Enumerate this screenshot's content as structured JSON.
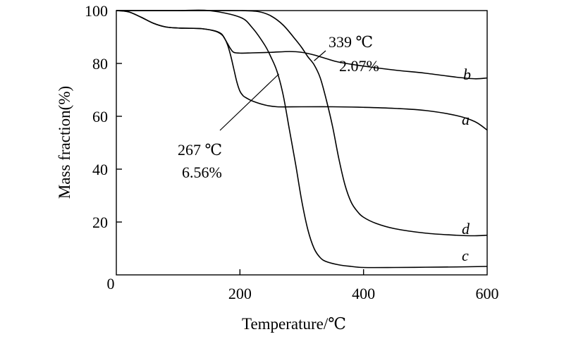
{
  "chart_data": {
    "type": "line",
    "title": "",
    "xlabel": "Temperature/℃",
    "ylabel": "Mass fraction(%)",
    "xlim": [
      0,
      600
    ],
    "ylim": [
      0,
      100
    ],
    "xticks": [
      0,
      200,
      400,
      600
    ],
    "yticks": [
      20,
      40,
      60,
      80,
      100
    ],
    "x_tick_labels": [
      "0",
      "200",
      "400",
      "600"
    ],
    "y_tick_labels": [
      "20",
      "40",
      "60",
      "80",
      "100"
    ],
    "grid": false,
    "legend": "inline labels at right end of curves",
    "series": [
      {
        "name": "a",
        "x": [
          0,
          20,
          40,
          60,
          80,
          100,
          120,
          140,
          160,
          170,
          175,
          180,
          185,
          190,
          195,
          200,
          205,
          210,
          220,
          240,
          260,
          300,
          350,
          400,
          450,
          500,
          550,
          580,
          600
        ],
        "y": [
          100,
          99.5,
          97.5,
          95.2,
          93.8,
          93.4,
          93.3,
          93.1,
          92.2,
          91.0,
          89.6,
          87.0,
          83.0,
          78.0,
          73.0,
          69.5,
          67.8,
          67.0,
          65.8,
          64.3,
          63.6,
          63.6,
          63.6,
          63.4,
          63.0,
          62.2,
          60.3,
          58.0,
          54.8
        ]
      },
      {
        "name": "b",
        "x": [
          0,
          20,
          40,
          60,
          80,
          100,
          120,
          140,
          160,
          170,
          175,
          180,
          185,
          190,
          200,
          220,
          250,
          280,
          300,
          320,
          340,
          360,
          400,
          450,
          500,
          550,
          580,
          600
        ],
        "y": [
          100,
          99.5,
          97.5,
          95.2,
          93.8,
          93.4,
          93.3,
          93.1,
          92.3,
          91.2,
          89.5,
          87.5,
          85.5,
          84.2,
          83.9,
          84.0,
          84.2,
          84.5,
          84.2,
          83.2,
          81.8,
          80.5,
          79.0,
          77.5,
          76.3,
          74.8,
          74.2,
          74.5
        ]
      },
      {
        "name": "c",
        "x": [
          0,
          50,
          100,
          150,
          200,
          220,
          240,
          250,
          260,
          270,
          280,
          290,
          300,
          310,
          320,
          330,
          340,
          360,
          380,
          400,
          450,
          500,
          550,
          600
        ],
        "y": [
          100,
          100.3,
          100.5,
          100.2,
          97.5,
          93.5,
          87.0,
          82.5,
          77.0,
          68.0,
          55.0,
          42.0,
          28.0,
          17.0,
          10.0,
          6.5,
          5.0,
          3.8,
          3.2,
          2.8,
          2.8,
          2.9,
          3.0,
          3.2
        ]
      },
      {
        "name": "d",
        "x": [
          0,
          50,
          100,
          150,
          200,
          230,
          250,
          270,
          290,
          300,
          310,
          320,
          330,
          340,
          350,
          360,
          370,
          380,
          390,
          400,
          420,
          450,
          500,
          550,
          580,
          600
        ],
        "y": [
          100,
          100.3,
          100.6,
          100.8,
          100.5,
          99.6,
          98.0,
          94.5,
          89.0,
          86.0,
          82.5,
          79.5,
          74.5,
          66.0,
          56.0,
          44.0,
          34.0,
          27.5,
          24.0,
          21.8,
          19.5,
          17.5,
          15.8,
          15.0,
          14.8,
          15.0
        ]
      }
    ],
    "annotations": [
      {
        "lines": [
          "339 ℃",
          "2.07%"
        ],
        "points_to": {
          "x": 320,
          "y": 81
        }
      },
      {
        "lines": [
          "267 ℃",
          "6.56%"
        ],
        "points_to": {
          "x": 263,
          "y": 76
        }
      }
    ]
  }
}
